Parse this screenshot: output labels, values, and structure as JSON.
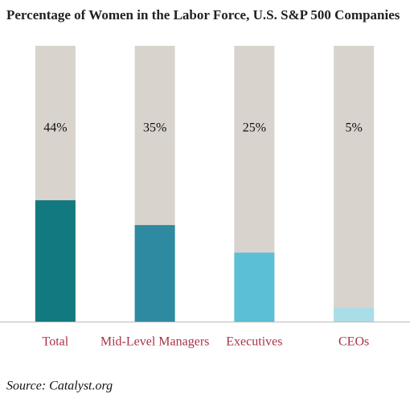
{
  "chart_data": {
    "type": "bar",
    "title": "Percentage of  Women in the Labor Force, U.S. S&P 500 Companies",
    "categories": [
      "Total",
      "Mid-Level Managers",
      "Executives",
      "CEOs"
    ],
    "values": [
      44,
      35,
      25,
      5
    ],
    "value_labels": [
      "44%",
      "35%",
      "25%",
      "5%"
    ],
    "colors": [
      "#127980",
      "#2e8aa1",
      "#5bbfd6",
      "#a9dde7"
    ],
    "background_color": "#d8d3cc",
    "ylim": [
      0,
      100
    ],
    "source": "Source: Catalyst.org"
  }
}
